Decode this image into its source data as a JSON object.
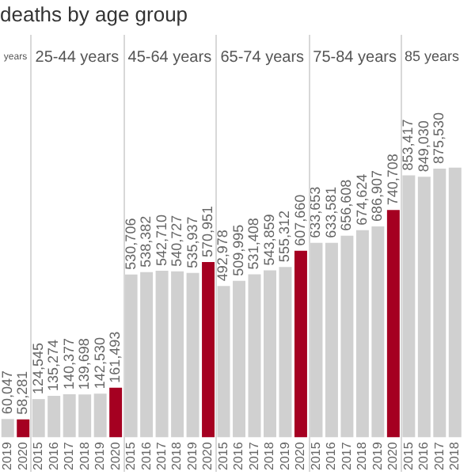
{
  "chart_data": {
    "type": "bar",
    "title": "deaths by age group",
    "categories": [
      "2019",
      "2020",
      "2015",
      "2016",
      "2017",
      "2018",
      "2019",
      "2020",
      "2015",
      "2016",
      "2017",
      "2018",
      "2019",
      "2020",
      "2015",
      "2016",
      "2017",
      "2018",
      "2019",
      "2020",
      "2015",
      "2016",
      "2017",
      "2018",
      "2019",
      "2020",
      "2015",
      "2016",
      "2017",
      "2018"
    ],
    "values": [
      60047,
      58281,
      124545,
      135274,
      140377,
      139698,
      142530,
      161493,
      530706,
      538382,
      542710,
      540727,
      535937,
      570951,
      492978,
      509995,
      531408,
      543859,
      555312,
      607660,
      633653,
      633581,
      656608,
      674624,
      686907,
      740708,
      853417,
      849030,
      875530,
      879000
    ],
    "value_labels": [
      "60,047",
      "58,281",
      "124,545",
      "135,274",
      "140,377",
      "139,698",
      "142,530",
      "161,493",
      "530,706",
      "538,382",
      "542,710",
      "540,727",
      "535,937",
      "570,951",
      "492,978",
      "509,995",
      "531,408",
      "543,859",
      "555,312",
      "607,660",
      "633,653",
      "633,581",
      "656,608",
      "674,624",
      "686,907",
      "740,708",
      "853,417",
      "849,030",
      "875,530",
      null
    ],
    "colors": [
      "#d0d0d0",
      "#a50021",
      "#d0d0d0",
      "#d0d0d0",
      "#d0d0d0",
      "#d0d0d0",
      "#d0d0d0",
      "#a50021",
      "#d0d0d0",
      "#d0d0d0",
      "#d0d0d0",
      "#d0d0d0",
      "#d0d0d0",
      "#a50021",
      "#d0d0d0",
      "#d0d0d0",
      "#d0d0d0",
      "#d0d0d0",
      "#d0d0d0",
      "#a50021",
      "#d0d0d0",
      "#d0d0d0",
      "#d0d0d0",
      "#d0d0d0",
      "#d0d0d0",
      "#a50021",
      "#d0d0d0",
      "#d0d0d0",
      "#d0d0d0",
      "#d0d0d0"
    ],
    "annotations": [
      "years",
      "25-44 years",
      "45-64 years",
      "65-74 years",
      "75-84 years",
      "85 years"
    ],
    "grid": false,
    "legend": false
  }
}
